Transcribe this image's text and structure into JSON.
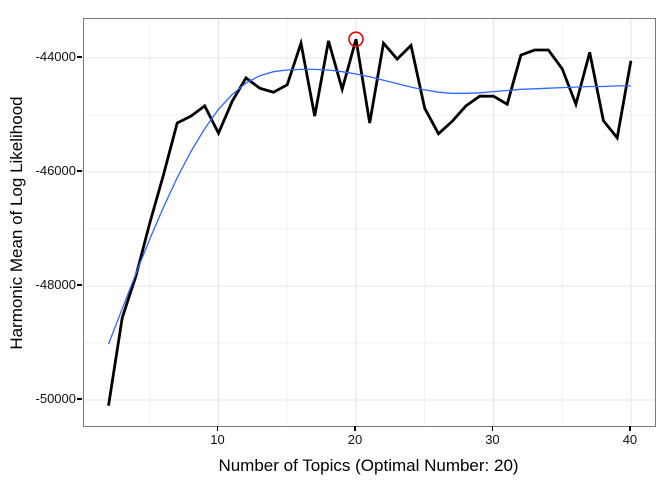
{
  "chart_data": {
    "type": "line",
    "title": "",
    "xlabel": "Number of Topics (Optimal Number: 20)",
    "ylabel": "Harmonic Mean of Log Likelihood",
    "x": [
      2,
      3,
      4,
      5,
      6,
      7,
      8,
      9,
      10,
      11,
      12,
      13,
      14,
      15,
      16,
      17,
      18,
      19,
      20,
      21,
      22,
      23,
      24,
      25,
      26,
      27,
      28,
      29,
      30,
      31,
      32,
      33,
      34,
      35,
      36,
      37,
      38,
      39,
      40
    ],
    "series": [
      {
        "name": "harmonic-mean-log-likelihood",
        "color": "#000000",
        "width": 2.8,
        "values": [
          -50100,
          -48560,
          -47820,
          -46900,
          -46050,
          -45140,
          -45020,
          -44840,
          -45320,
          -44760,
          -44350,
          -44530,
          -44600,
          -44470,
          -43740,
          -45020,
          -43700,
          -44550,
          -43670,
          -45140,
          -43740,
          -44020,
          -43780,
          -44880,
          -45330,
          -45110,
          -44840,
          -44670,
          -44670,
          -44810,
          -43950,
          -43860,
          -43860,
          -44190,
          -44810,
          -43900,
          -45100,
          -45400,
          -44050
        ]
      },
      {
        "name": "loess-smooth",
        "color": "#3366FF",
        "width": 1.3,
        "values": [
          -49020,
          -48400,
          -47780,
          -47180,
          -46620,
          -46100,
          -45640,
          -45240,
          -44900,
          -44640,
          -44440,
          -44310,
          -44240,
          -44210,
          -44200,
          -44200,
          -44210,
          -44240,
          -44280,
          -44330,
          -44390,
          -44450,
          -44510,
          -44560,
          -44600,
          -44620,
          -44620,
          -44610,
          -44590,
          -44570,
          -44550,
          -44540,
          -44530,
          -44520,
          -44510,
          -44500,
          -44500,
          -44490,
          -44490
        ]
      }
    ],
    "annotation": {
      "shape": "circle",
      "x": 20,
      "y": -43670,
      "radius": 7,
      "color": "#E00000",
      "meaning": "optimal-number-of-topics-marker"
    },
    "xlim": [
      0.22,
      41.75
    ],
    "ylim": [
      -50456,
      -43316
    ],
    "x_ticks": {
      "values": [
        10,
        20,
        30,
        40
      ],
      "labels": [
        "10",
        "20",
        "30",
        "40"
      ]
    },
    "y_ticks": {
      "values": [
        -44000,
        -46000,
        -48000,
        -50000
      ],
      "labels": [
        "-44000",
        "-46000",
        "-48000",
        "-50000"
      ]
    },
    "x_minor": [
      5,
      15,
      25,
      35
    ],
    "y_minor": [
      -45000,
      -47000,
      -49000
    ],
    "grid": "major+minor",
    "legend": "none",
    "colors": {
      "panel_border": "#7a7a7a",
      "grid_major": "#e4e4e4",
      "grid_minor": "#f2f2f2",
      "background": "#ffffff",
      "tick": "#000000",
      "text": "#000000"
    }
  }
}
